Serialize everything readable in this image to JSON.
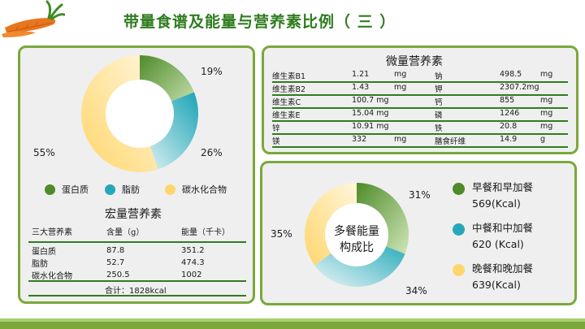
{
  "page": {
    "title": "带量食谱及能量与营养素比例（ 三 ）"
  },
  "colors": {
    "protein": "#4f8b2a",
    "fat": "#26a8b8",
    "carbs": "#ffd66b",
    "accent_green": "#2f7d1f",
    "panel_border": "#7aa83a"
  },
  "macro_donut": {
    "labels": {
      "protein_pct": "19%",
      "fat_pct": "26%",
      "carbs_pct": "55%"
    },
    "legend": [
      {
        "label": "蛋白质",
        "color": "#4f8b2a",
        "icon": "circle-icon"
      },
      {
        "label": "脂肪",
        "color": "#26a8b8",
        "icon": "circle-icon"
      },
      {
        "label": "碳水化合物",
        "color": "#ffd66b",
        "icon": "circle-icon"
      }
    ]
  },
  "macro_table": {
    "title": "宏量营养素",
    "headers": [
      "三大营养素",
      "含量（g）",
      "能量（千卡）"
    ],
    "rows": [
      [
        "蛋白质",
        "87.8",
        "351.2"
      ],
      [
        "脂肪",
        "52.7",
        "474.3"
      ],
      [
        "碳水化合物",
        "250.5",
        "1002"
      ]
    ],
    "total": "合计：1828kcal"
  },
  "micro_table": {
    "title": "微量营养素",
    "rows": [
      [
        "维生素B1",
        "1.21",
        "mg",
        "钠",
        "498.5",
        "mg"
      ],
      [
        "维生素B2",
        "1.43",
        "mg",
        "钾",
        "2307.2mg",
        ""
      ],
      [
        "维生素C",
        "100.7 mg",
        "",
        "钙",
        "855",
        "mg"
      ],
      [
        "维生素E",
        "15.04 mg",
        "",
        "磷",
        "1246",
        "mg"
      ],
      [
        "锌",
        "10.91 mg",
        "",
        "铁",
        "20.8",
        "mg"
      ],
      [
        "镁",
        "332",
        "mg",
        "膳食纤维",
        "14.9",
        "g"
      ]
    ]
  },
  "meal_donut": {
    "center_line1": "多餐能量",
    "center_line2": "构成比",
    "labels": {
      "breakfast_pct": "31%",
      "lunch_pct": "34%",
      "dinner_pct": "35%"
    },
    "legend": [
      {
        "name": "早餐和早加餐",
        "value": "569(Kcal)",
        "color": "#4f8b2a",
        "icon": "circle-icon"
      },
      {
        "name": "中餐和中加餐",
        "value": "620 (Kcal)",
        "color": "#26a8b8",
        "icon": "circle-icon"
      },
      {
        "name": "晚餐和晚加餐",
        "value": "639(Kcal)",
        "color": "#ffd66b",
        "icon": "circle-icon"
      }
    ]
  },
  "chart_data": [
    {
      "type": "pie",
      "categories": [
        "蛋白质",
        "脂肪",
        "碳水化合物"
      ],
      "values": [
        19,
        26,
        55
      ],
      "title": ""
    },
    {
      "type": "pie",
      "categories": [
        "早餐和早加餐",
        "中餐和中加餐",
        "晚餐和晚加餐"
      ],
      "values": [
        31,
        34,
        35
      ],
      "title": "多餐能量构成比"
    }
  ]
}
